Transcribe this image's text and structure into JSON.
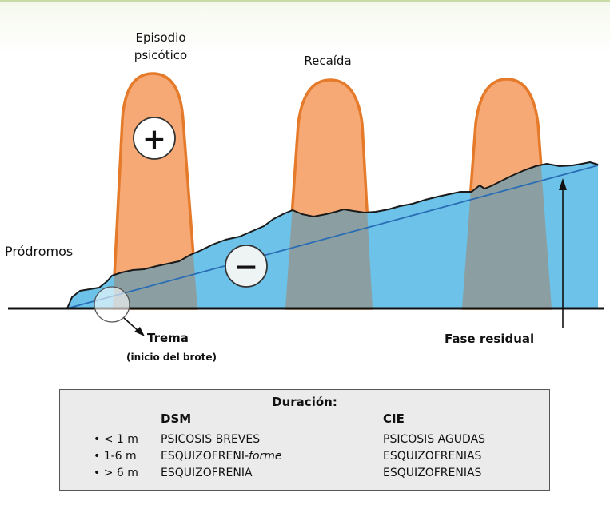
{
  "labels": {
    "episodio_line1": "Episodio",
    "episodio_line2": "psicótico",
    "recaida": "Recaída",
    "prodromos": "Pródromos",
    "trema": "Trema",
    "trema_sub": "(inicio del brote)",
    "fase_residual": "Fase residual"
  },
  "symbols": {
    "positive": "+",
    "negative": "−"
  },
  "duration_box": {
    "title": "Duración:",
    "col_dsm": "DSM",
    "col_cie": "CIE",
    "rows": [
      {
        "duration": "• < 1 m",
        "dsm": "PSICOSIS BREVES",
        "dsm_suffix": "",
        "cie": "PSICOSIS AGUDAS"
      },
      {
        "duration": "• 1-6 m",
        "dsm": "ESQUIZOFRENI-",
        "dsm_suffix": "forme",
        "cie": "ESQUIZOFRENIAS"
      },
      {
        "duration": "• > 6 m",
        "dsm": "ESQUIZOFRENIA",
        "dsm_suffix": "",
        "cie": "ESQUIZOFRENIAS"
      }
    ]
  },
  "colors": {
    "positive_fill": "#f6a974",
    "positive_stroke": "#e47a2a",
    "negative_fill": "#6cc2e8",
    "overlap_fill": "#8b9fa2",
    "trend_line": "#2a6db5",
    "box_bg": "#ebebeb"
  }
}
